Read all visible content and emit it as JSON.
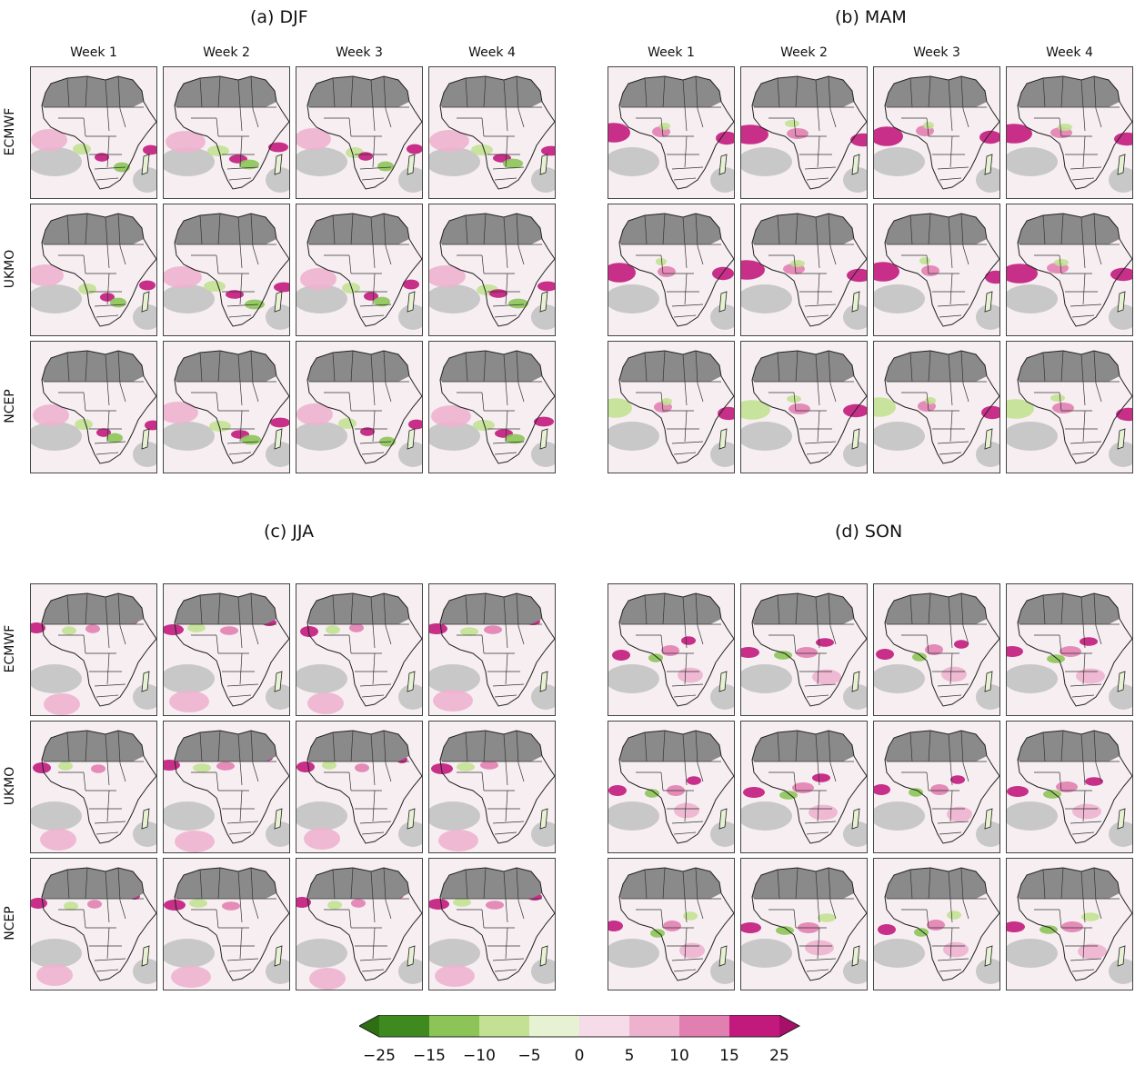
{
  "panels": [
    {
      "id": "a",
      "title": "(a) DJF"
    },
    {
      "id": "b",
      "title": "(b) MAM"
    },
    {
      "id": "c",
      "title": "(c) JJA"
    },
    {
      "id": "d",
      "title": "(d) SON"
    }
  ],
  "weeks": [
    "Week 1",
    "Week 2",
    "Week 3",
    "Week 4"
  ],
  "models": [
    "ECMWF",
    "UKMO",
    "NCEP"
  ],
  "colors": {
    "land": "#8a8a8a",
    "sea_mask": "#c8c8c8",
    "neutral": "#f2ecef",
    "pos": [
      "#f6dbe8",
      "#eeb2cf",
      "#e17fb1",
      "#c11a7c"
    ],
    "neg": [
      "#e6f2d2",
      "#c2e192",
      "#8cc458",
      "#4f9b2a"
    ]
  },
  "chart_data": {
    "type": "heatmap",
    "colorbar": {
      "ticks": [
        -25,
        -15,
        -10,
        -5,
        0,
        5,
        10,
        15,
        25
      ],
      "tick_labels": [
        "−25",
        "−15",
        "−10",
        "−5",
        "0",
        "5",
        "10",
        "15",
        "25"
      ],
      "colors": [
        "#3f8a1f",
        "#8cc458",
        "#c2e192",
        "#e6f2d2",
        "#f7eef2",
        "#f6dbe8",
        "#eeb2cf",
        "#e17fb1",
        "#c11a7c"
      ],
      "extend": "both"
    }
  }
}
